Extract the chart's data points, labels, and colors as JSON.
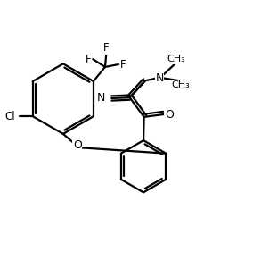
{
  "background_color": "#ffffff",
  "line_color": "#000000",
  "bond_width": 1.6,
  "figsize": [
    2.93,
    2.91
  ],
  "dpi": 100,
  "xlim": [
    0,
    10
  ],
  "ylim": [
    0,
    10
  ]
}
